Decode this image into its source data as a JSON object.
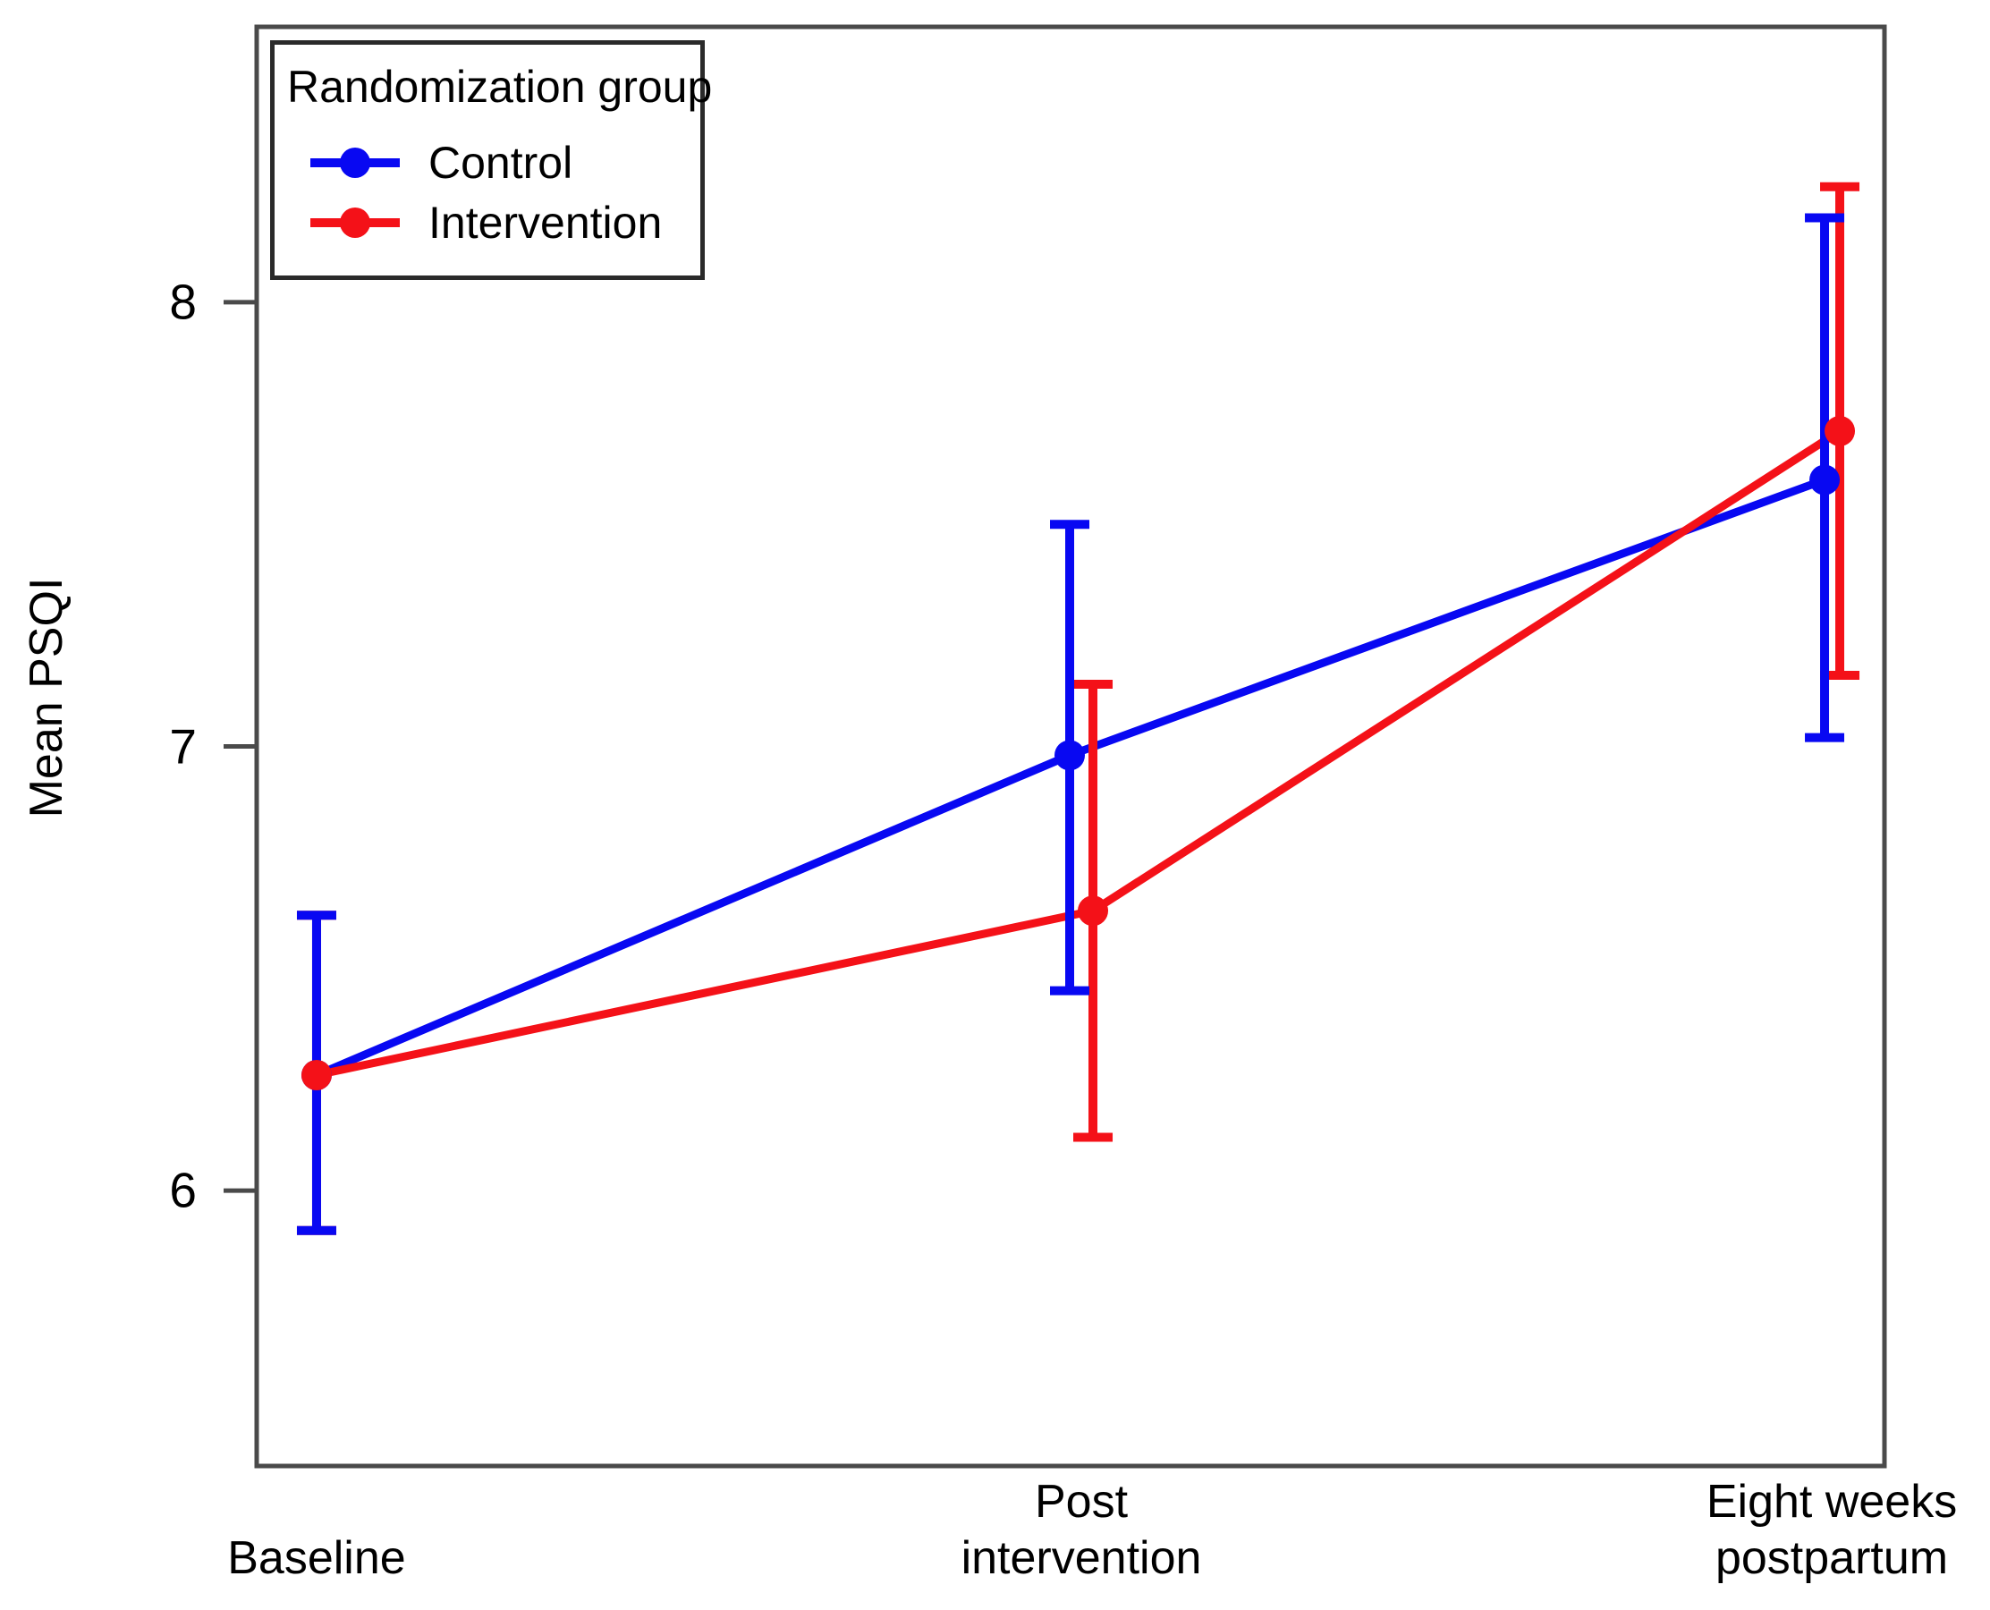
{
  "figure": {
    "description": "Line chart with error bars of Mean PSQI by randomization group across three time points",
    "background": "#ffffff",
    "axis_color": "#4a4a4a"
  },
  "chart_data": {
    "type": "line",
    "error_bars": true,
    "title": "",
    "xlabel": "",
    "ylabel": "Mean PSQI",
    "categories": [
      "Baseline",
      "Post\nintervention",
      "Eight weeks\npostpartum"
    ],
    "yticks": [
      6,
      7,
      8
    ],
    "ylim": [
      5.38,
      8.62
    ],
    "grid": false,
    "legend": {
      "title": "Randomization group",
      "position": "top-left",
      "entries": [
        {
          "label": "Control",
          "color": "#0808f2"
        },
        {
          "label": "Intervention",
          "color": "#f41118"
        }
      ]
    },
    "series": [
      {
        "name": "Control",
        "color": "#0808f2",
        "means": [
          6.26,
          6.98,
          7.6
        ],
        "ci_low": [
          5.91,
          6.45,
          7.02
        ],
        "ci_high": [
          6.62,
          7.5,
          8.19
        ]
      },
      {
        "name": "Intervention",
        "color": "#f41118",
        "means": [
          6.26,
          6.63,
          7.71
        ],
        "ci_low": [
          5.91,
          6.12,
          7.16
        ],
        "ci_high": [
          6.62,
          7.14,
          8.26
        ]
      }
    ]
  }
}
